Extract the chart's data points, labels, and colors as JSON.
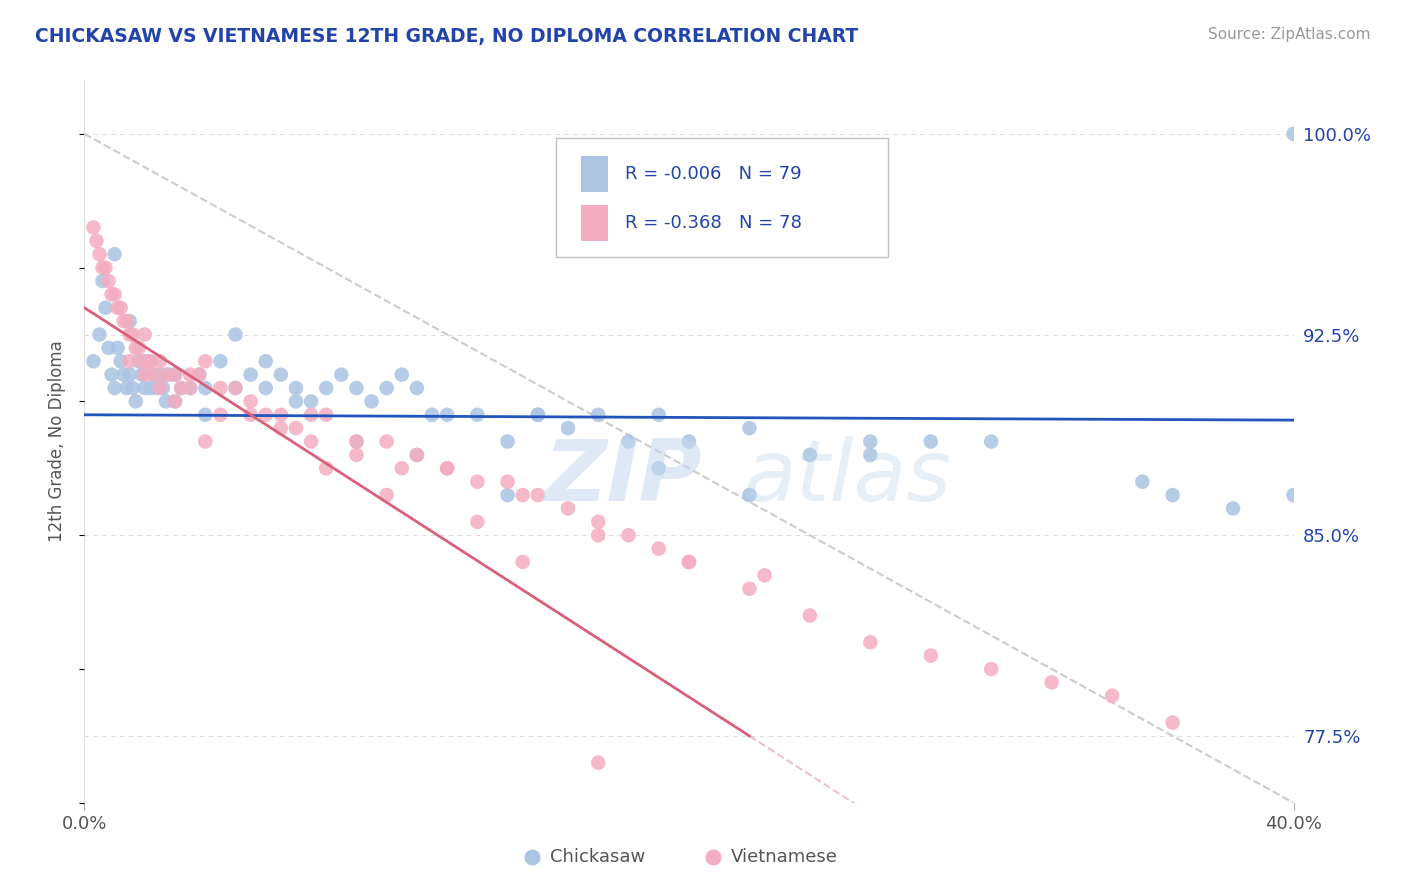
{
  "title": "CHICKASAW VS VIETNAMESE 12TH GRADE, NO DIPLOMA CORRELATION CHART",
  "source": "Source: ZipAtlas.com",
  "ylabel_label": "12th Grade, No Diploma",
  "legend_r1": "R = -0.006",
  "legend_n1": "N = 79",
  "legend_r2": "R = -0.368",
  "legend_n2": "N = 78",
  "chickasaw_color": "#aac4e2",
  "vietnamese_color": "#f4adc0",
  "blue_line_color": "#2255bb",
  "pink_line_color": "#d9607a",
  "dashed_line_color": "#cccccc",
  "watermark_color": "#c5d8ee",
  "background_color": "#ffffff",
  "grid_color": "#dddddd",
  "title_color": "#2244aa",
  "axis_label_color": "#555555",
  "source_color": "#999999",
  "xlim": [
    0,
    40
  ],
  "ylim": [
    75.0,
    102.0
  ],
  "yticks": [
    77.5,
    85.0,
    92.5,
    100.0
  ],
  "xticks": [
    0,
    40
  ],
  "xtick_labels": [
    "0.0%",
    "40.0%"
  ],
  "ytick_labels": [
    "77.5%",
    "85.0%",
    "92.5%",
    "100.0%"
  ],
  "blue_line_y0": 89.5,
  "blue_line_y1": 89.3,
  "pink_line_y0": 93.5,
  "pink_line_y1": 77.5,
  "pink_line_x1": 22.0,
  "chickasaw_x": [
    0.3,
    0.5,
    0.6,
    0.7,
    0.8,
    0.9,
    1.0,
    1.0,
    1.1,
    1.2,
    1.3,
    1.4,
    1.5,
    1.6,
    1.7,
    1.8,
    1.9,
    2.0,
    2.1,
    2.2,
    2.3,
    2.4,
    2.5,
    2.6,
    2.7,
    2.8,
    3.0,
    3.2,
    3.5,
    3.8,
    4.0,
    4.5,
    5.0,
    5.5,
    6.0,
    6.5,
    7.0,
    7.5,
    8.0,
    8.5,
    9.0,
    9.5,
    10.0,
    10.5,
    11.0,
    11.5,
    12.0,
    13.0,
    14.0,
    15.0,
    16.0,
    17.0,
    18.0,
    19.0,
    20.0,
    22.0,
    24.0,
    26.0,
    28.0,
    30.0,
    35.0,
    36.0,
    38.0,
    40.0,
    1.5,
    2.0,
    3.0,
    4.0,
    5.0,
    6.0,
    7.0,
    9.0,
    11.0,
    14.0,
    15.0,
    19.0,
    22.0,
    26.0,
    40.0
  ],
  "chickasaw_y": [
    91.5,
    92.5,
    94.5,
    93.5,
    92.0,
    91.0,
    95.5,
    90.5,
    92.0,
    91.5,
    91.0,
    90.5,
    91.0,
    90.5,
    90.0,
    91.5,
    91.0,
    90.5,
    91.5,
    90.5,
    91.0,
    90.5,
    91.0,
    90.5,
    90.0,
    91.0,
    91.0,
    90.5,
    90.5,
    91.0,
    90.5,
    91.5,
    90.5,
    91.0,
    90.5,
    91.0,
    90.5,
    90.0,
    90.5,
    91.0,
    90.5,
    90.0,
    90.5,
    91.0,
    90.5,
    89.5,
    89.5,
    89.5,
    88.5,
    89.5,
    89.0,
    89.5,
    88.5,
    89.5,
    88.5,
    89.0,
    88.0,
    88.5,
    88.5,
    88.5,
    87.0,
    86.5,
    86.0,
    86.5,
    93.0,
    91.5,
    90.0,
    89.5,
    92.5,
    91.5,
    90.0,
    88.5,
    88.0,
    86.5,
    89.5,
    87.5,
    86.5,
    88.0,
    100.0
  ],
  "vietnamese_x": [
    0.3,
    0.4,
    0.5,
    0.6,
    0.7,
    0.8,
    0.9,
    1.0,
    1.1,
    1.2,
    1.3,
    1.4,
    1.5,
    1.6,
    1.7,
    1.8,
    1.9,
    2.0,
    2.1,
    2.2,
    2.3,
    2.5,
    2.7,
    3.0,
    3.2,
    3.5,
    3.8,
    4.0,
    4.5,
    5.0,
    5.5,
    6.0,
    6.5,
    7.0,
    7.5,
    8.0,
    9.0,
    10.0,
    11.0,
    12.0,
    13.0,
    14.0,
    15.0,
    16.0,
    17.0,
    18.0,
    19.0,
    20.0,
    22.0,
    24.0,
    26.0,
    28.0,
    30.0,
    32.0,
    34.0,
    36.0,
    1.5,
    2.0,
    2.5,
    3.0,
    3.5,
    4.5,
    5.5,
    6.5,
    7.5,
    9.0,
    10.5,
    12.0,
    14.5,
    17.0,
    20.0,
    22.5,
    13.0,
    10.0,
    8.0,
    4.0,
    14.5,
    17.0
  ],
  "vietnamese_y": [
    96.5,
    96.0,
    95.5,
    95.0,
    95.0,
    94.5,
    94.0,
    94.0,
    93.5,
    93.5,
    93.0,
    93.0,
    92.5,
    92.5,
    92.0,
    92.0,
    91.5,
    92.5,
    91.5,
    91.5,
    91.0,
    91.5,
    91.0,
    91.0,
    90.5,
    91.0,
    91.0,
    91.5,
    90.5,
    90.5,
    90.0,
    89.5,
    89.5,
    89.0,
    89.5,
    89.5,
    88.5,
    88.5,
    88.0,
    87.5,
    87.0,
    87.0,
    86.5,
    86.0,
    85.5,
    85.0,
    84.5,
    84.0,
    83.0,
    82.0,
    81.0,
    80.5,
    80.0,
    79.5,
    79.0,
    78.0,
    91.5,
    91.0,
    90.5,
    90.0,
    90.5,
    89.5,
    89.5,
    89.0,
    88.5,
    88.0,
    87.5,
    87.5,
    86.5,
    85.0,
    84.0,
    83.5,
    85.5,
    86.5,
    87.5,
    88.5,
    84.0,
    76.5
  ]
}
